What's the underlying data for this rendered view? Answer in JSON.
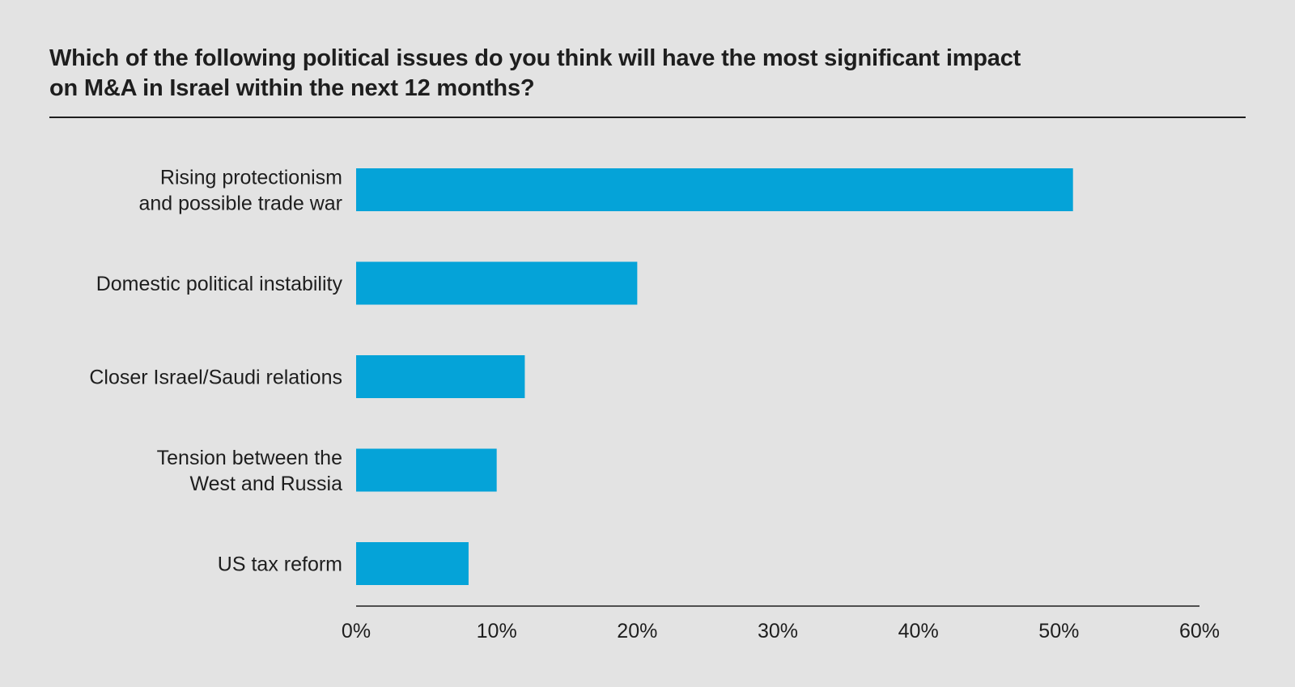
{
  "chart_data": {
    "type": "bar",
    "orientation": "horizontal",
    "title": "Which of the following political issues do you think will have the most significant impact on M&A in Israel within the next 12 months?",
    "title_lines": [
      "Which of the following political issues do you think will have the most significant impact",
      "on M&A in Israel within the next 12 months?"
    ],
    "categories": [
      [
        "Rising protectionism",
        "and possible trade war"
      ],
      [
        "Domestic political instability"
      ],
      [
        "Closer Israel/Saudi relations"
      ],
      [
        "Tension between the",
        "West and Russia"
      ],
      [
        "US tax reform"
      ]
    ],
    "values": [
      51,
      20,
      12,
      10,
      8
    ],
    "xlim": [
      0,
      60
    ],
    "xticks": [
      0,
      10,
      20,
      30,
      40,
      50,
      60
    ],
    "xtick_labels": [
      "0%",
      "10%",
      "20%",
      "30%",
      "40%",
      "50%",
      "60%"
    ],
    "xlabel": "",
    "ylabel": "",
    "grid": false,
    "bar_color": "#05a3d8"
  }
}
